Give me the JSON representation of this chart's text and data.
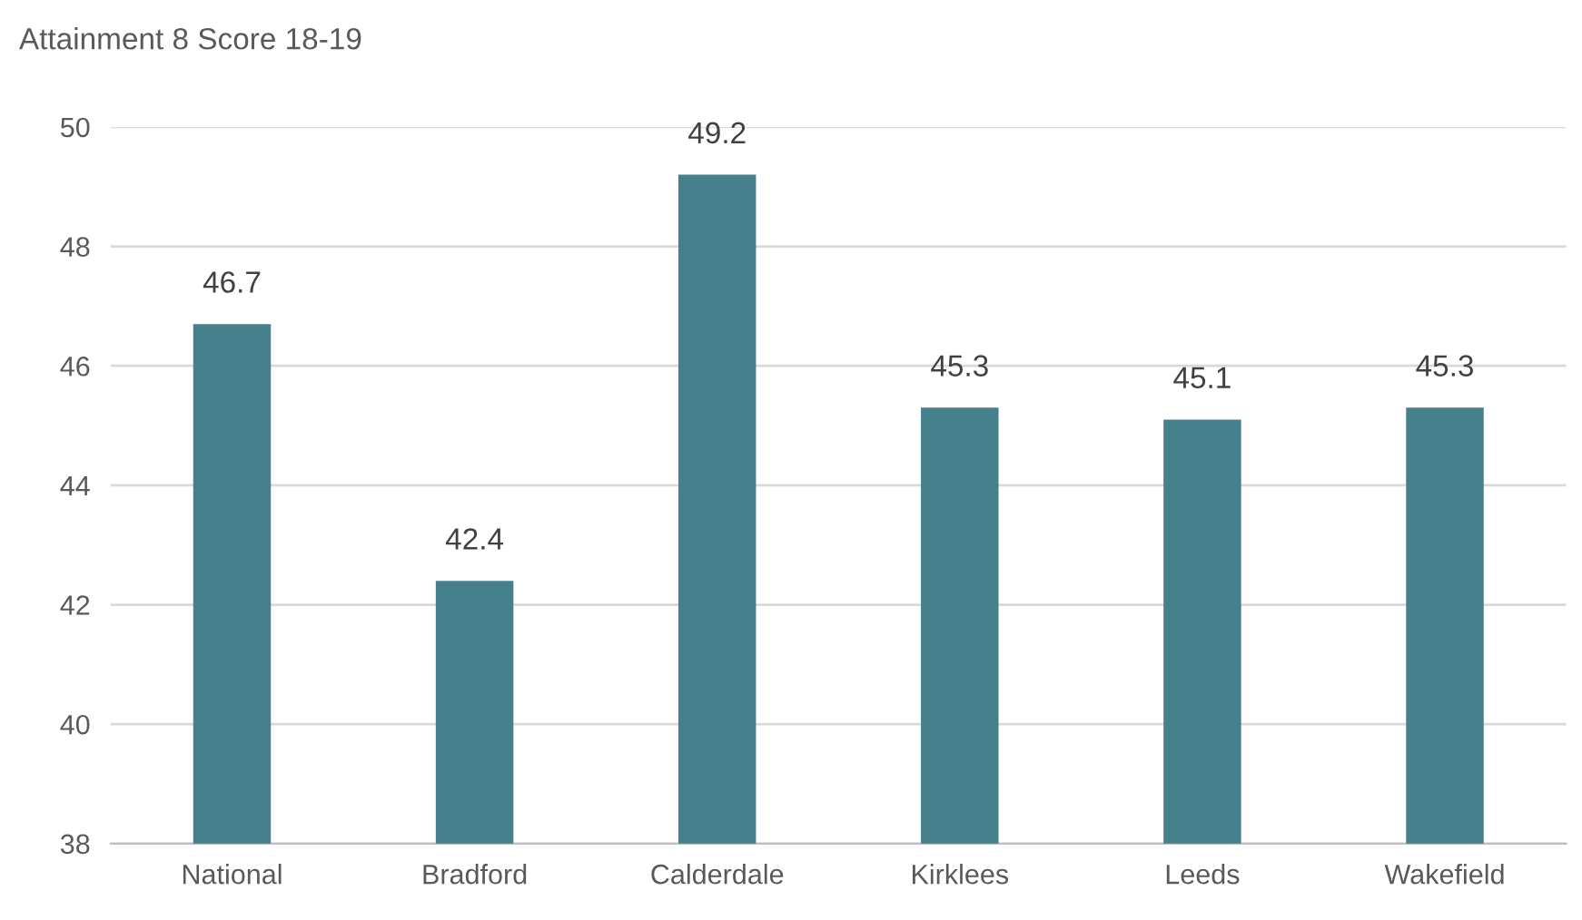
{
  "chart_data": {
    "type": "bar",
    "title": "Attainment 8 Score 18-19",
    "categories": [
      "National",
      "Bradford",
      "Calderdale",
      "Kirklees",
      "Leeds",
      "Wakefield"
    ],
    "values": [
      46.7,
      42.4,
      49.2,
      45.3,
      45.1,
      45.3
    ],
    "color": "#45808c",
    "ylim": [
      38,
      50
    ],
    "yticks": [
      38,
      40,
      42,
      44,
      46,
      48,
      50
    ],
    "grid": "y",
    "data_labels": true
  }
}
